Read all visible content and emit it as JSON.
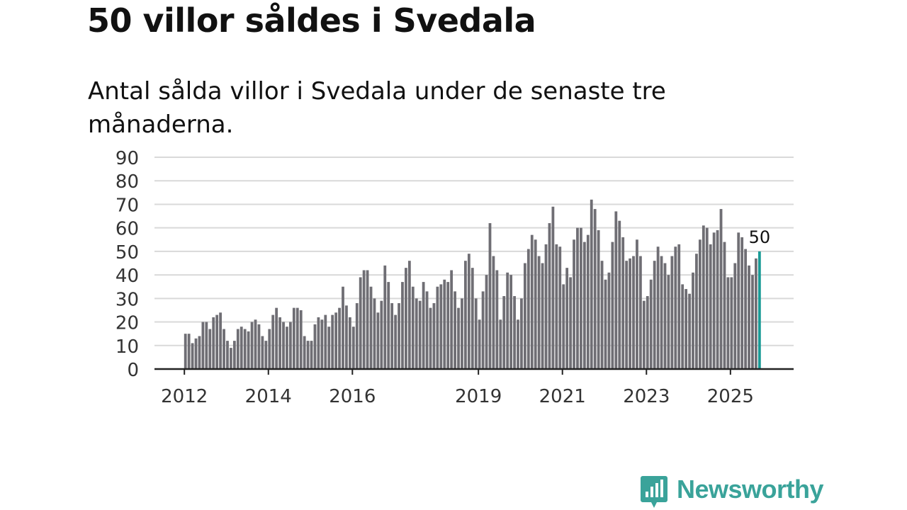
{
  "title": "50 villor såldes i Svedala",
  "subtitle": "Antal sålda villor i Svedala under de senaste tre månaderna.",
  "brand": {
    "name": "Newsworthy",
    "icon": "newsworthy-logo-icon"
  },
  "colors": {
    "bar": "#6f6e74",
    "highlight": "#199b96",
    "grid": "#d9d9d9",
    "axis": "#222222",
    "brand": "#3aa39a"
  },
  "chart_data": {
    "type": "bar",
    "title": "50 villor såldes i Svedala",
    "xlabel": "",
    "ylabel": "",
    "ylim": [
      0,
      90
    ],
    "yticks": [
      "0",
      "10",
      "20",
      "30",
      "40",
      "50",
      "60",
      "70",
      "80",
      "90"
    ],
    "xticks": [
      {
        "label": "2012",
        "index": 0
      },
      {
        "label": "2014",
        "index": 24
      },
      {
        "label": "2016",
        "index": 48
      },
      {
        "label": "2019",
        "index": 84
      },
      {
        "label": "2021",
        "index": 108
      },
      {
        "label": "2023",
        "index": 132
      },
      {
        "label": "2025",
        "index": 156
      }
    ],
    "x_start": "2012-01",
    "x_end": "2025-09",
    "interval": "month",
    "highlight_label": "50",
    "grid": true,
    "values": [
      15,
      15,
      11,
      13,
      14,
      20,
      20,
      17,
      22,
      23,
      24,
      17,
      12,
      9,
      12,
      17,
      18,
      17,
      16,
      20,
      21,
      19,
      14,
      12,
      17,
      23,
      26,
      22,
      20,
      18,
      20,
      26,
      26,
      25,
      14,
      12,
      12,
      19,
      22,
      21,
      23,
      18,
      23,
      24,
      26,
      35,
      27,
      22,
      18,
      28,
      39,
      42,
      42,
      35,
      30,
      24,
      29,
      44,
      37,
      28,
      23,
      28,
      37,
      43,
      46,
      35,
      30,
      29,
      37,
      33,
      26,
      28,
      35,
      36,
      38,
      37,
      42,
      33,
      26,
      30,
      46,
      49,
      43,
      30,
      21,
      33,
      40,
      62,
      48,
      42,
      21,
      31,
      41,
      40,
      31,
      21,
      30,
      45,
      51,
      57,
      55,
      48,
      45,
      53,
      62,
      69,
      53,
      52,
      36,
      43,
      39,
      55,
      60,
      60,
      54,
      57,
      72,
      68,
      59,
      46,
      38,
      41,
      54,
      67,
      63,
      56,
      46,
      47,
      48,
      55,
      48,
      29,
      31,
      38,
      46,
      52,
      48,
      45,
      40,
      48,
      52,
      53,
      36,
      34,
      32,
      41,
      49,
      55,
      61,
      60,
      53,
      58,
      59,
      68,
      54,
      39,
      39,
      45,
      58,
      56,
      51,
      44,
      40,
      47,
      50
    ]
  }
}
